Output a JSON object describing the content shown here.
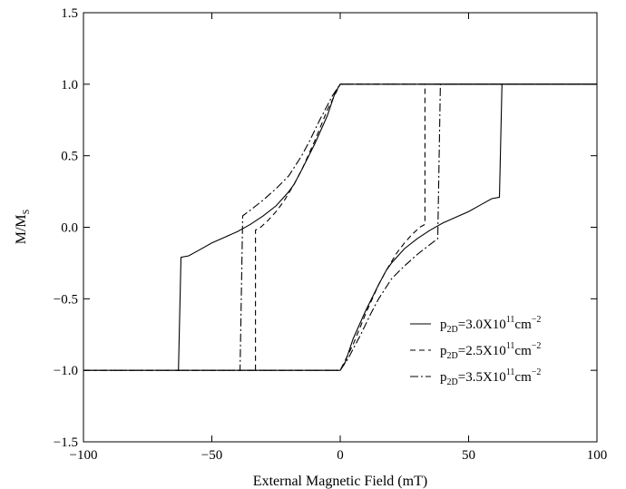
{
  "chart_data": {
    "type": "line",
    "title": "",
    "xlabel": "External Magnetic Field (mT)",
    "ylabel": {
      "main": "M/M",
      "sub": "S"
    },
    "xlim": [
      -100,
      100
    ],
    "ylim": [
      -1.5,
      1.5
    ],
    "xticks": [
      -100,
      -50,
      0,
      50,
      100
    ],
    "xtick_labels": [
      "−100",
      "−50",
      "0",
      "50",
      "100"
    ],
    "yticks": [
      -1.5,
      -1.0,
      -0.5,
      0.0,
      0.5,
      1.0,
      1.5
    ],
    "ytick_labels": [
      "−1.5",
      "−1.0",
      "−0.5",
      "0.0",
      "0.5",
      "1.0",
      "1.5"
    ],
    "grid": false,
    "legend_position": "bottom-right",
    "series": [
      {
        "legend": {
          "p": "p",
          "sub": "2D",
          "text": "=3.0X10",
          "sup1": "11",
          "unit": "cm",
          "sup2": "−2"
        },
        "dash": "solid",
        "x": [
          -100,
          -63,
          -62,
          -59,
          -55,
          -50,
          -45,
          -40,
          -35,
          -30,
          -25,
          -20,
          -18,
          -15,
          -10,
          -5,
          -2,
          0,
          100,
          63,
          62,
          59,
          55,
          50,
          45,
          40,
          35,
          30,
          25,
          20,
          18,
          15,
          10,
          5,
          2,
          0,
          -100
        ],
        "y": [
          -1.0,
          -1.0,
          -0.21,
          -0.2,
          -0.16,
          -0.11,
          -0.07,
          -0.03,
          0.02,
          0.08,
          0.15,
          0.25,
          0.3,
          0.4,
          0.58,
          0.78,
          0.94,
          1.0,
          1.0,
          1.0,
          0.21,
          0.2,
          0.16,
          0.11,
          0.07,
          0.03,
          -0.02,
          -0.08,
          -0.15,
          -0.25,
          -0.3,
          -0.4,
          -0.58,
          -0.78,
          -0.94,
          -1.0,
          -1.0
        ]
      },
      {
        "legend": {
          "p": "p",
          "sub": "2D",
          "text": "=2.5X10",
          "sup1": "11",
          "unit": "cm",
          "sup2": "−2"
        },
        "dash": "dashed",
        "x": [
          -100,
          -33,
          -33,
          -31,
          -28,
          -25,
          -22,
          -18,
          -15,
          -10,
          -5,
          0,
          33,
          100,
          33,
          33,
          31,
          28,
          25,
          22,
          18,
          15,
          10,
          5,
          0,
          -33
        ],
        "y": [
          -1.0,
          -1.0,
          -0.02,
          0.0,
          0.05,
          0.11,
          0.18,
          0.3,
          0.4,
          0.6,
          0.82,
          1.0,
          1.0,
          1.0,
          1.0,
          0.02,
          0.0,
          -0.05,
          -0.11,
          -0.18,
          -0.3,
          -0.4,
          -0.6,
          -0.82,
          -1.0,
          -1.0
        ]
      },
      {
        "legend": {
          "p": "p",
          "sub": "2D",
          "text": "=3.5X10",
          "sup1": "11",
          "unit": "cm",
          "sup2": "−2"
        },
        "dash": "dashdot",
        "x": [
          -100,
          -39,
          -38,
          -35,
          -30,
          -25,
          -20,
          -15,
          -12,
          -8,
          -3,
          0,
          39,
          100,
          39,
          38,
          35,
          30,
          25,
          20,
          15,
          12,
          8,
          3,
          0,
          -39
        ],
        "y": [
          -1.0,
          -1.0,
          0.08,
          0.12,
          0.19,
          0.27,
          0.36,
          0.5,
          0.6,
          0.75,
          0.92,
          1.0,
          1.0,
          1.0,
          1.0,
          -0.08,
          -0.12,
          -0.19,
          -0.27,
          -0.36,
          -0.5,
          -0.6,
          -0.75,
          -0.92,
          -1.0,
          -1.0
        ]
      }
    ]
  }
}
